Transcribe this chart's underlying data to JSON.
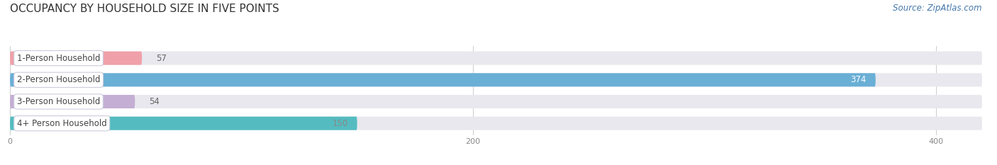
{
  "title": "OCCUPANCY BY HOUSEHOLD SIZE IN FIVE POINTS",
  "source": "Source: ZipAtlas.com",
  "categories": [
    "1-Person Household",
    "2-Person Household",
    "3-Person Household",
    "4+ Person Household"
  ],
  "values": [
    57,
    374,
    54,
    150
  ],
  "bar_colors": [
    "#f0a0a8",
    "#6aafd6",
    "#c4aed4",
    "#54bcc0"
  ],
  "value_colors": [
    "#888888",
    "#ffffff",
    "#888888",
    "#888888"
  ],
  "bg_color": "#ffffff",
  "bar_bg_color": "#e8e8ee",
  "xlim_max": 420,
  "xticks": [
    0,
    200,
    400
  ],
  "title_fontsize": 11,
  "label_fontsize": 8.5,
  "value_fontsize": 8.5,
  "source_fontsize": 8.5
}
